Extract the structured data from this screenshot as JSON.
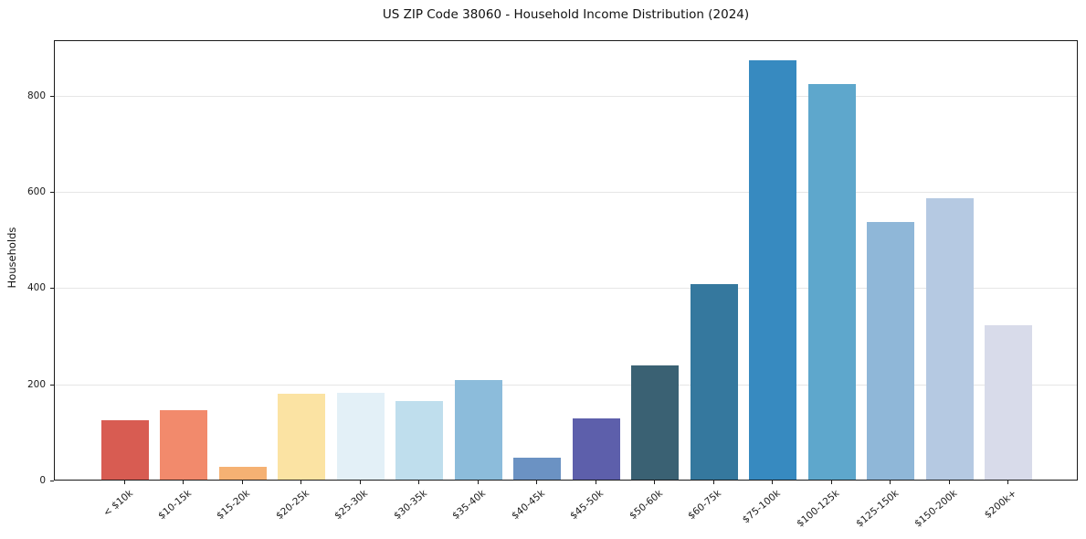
{
  "chart_data": {
    "type": "bar",
    "title": "US ZIP Code 38060 - Household Income Distribution (2024)",
    "xlabel": "",
    "ylabel": "Households",
    "categories": [
      "< $10k",
      "$10-15k",
      "$15-20k",
      "$20-25k",
      "$25-30k",
      "$30-35k",
      "$35-40k",
      "$40-45k",
      "$45-50k",
      "$50-60k",
      "$60-75k",
      "$75-100k",
      "$100-125k",
      "$125-150k",
      "$150-200k",
      "$200k+"
    ],
    "values": [
      124,
      144,
      26,
      179,
      181,
      163,
      207,
      45,
      127,
      238,
      407,
      872,
      822,
      536,
      584,
      320
    ],
    "bar_colors": [
      "#d85c52",
      "#f28a6c",
      "#f5b173",
      "#fbe3a3",
      "#e3f0f7",
      "#bfdeed",
      "#8cbcdb",
      "#6b92c3",
      "#5d5fab",
      "#3a6173",
      "#35789e",
      "#378ac0",
      "#5ea7cc",
      "#8fb7d8",
      "#b5c9e2",
      "#d8dbea"
    ],
    "ylim": [
      0,
      915
    ],
    "yticks": [
      0,
      200,
      400,
      600,
      800
    ],
    "grid": "horizontal-only",
    "legend": "none",
    "background_color": "#ffffff",
    "gridline_color": "#e6e6e6",
    "axis_color": "#1a1a1a",
    "text_color": "#1a1a1a"
  }
}
